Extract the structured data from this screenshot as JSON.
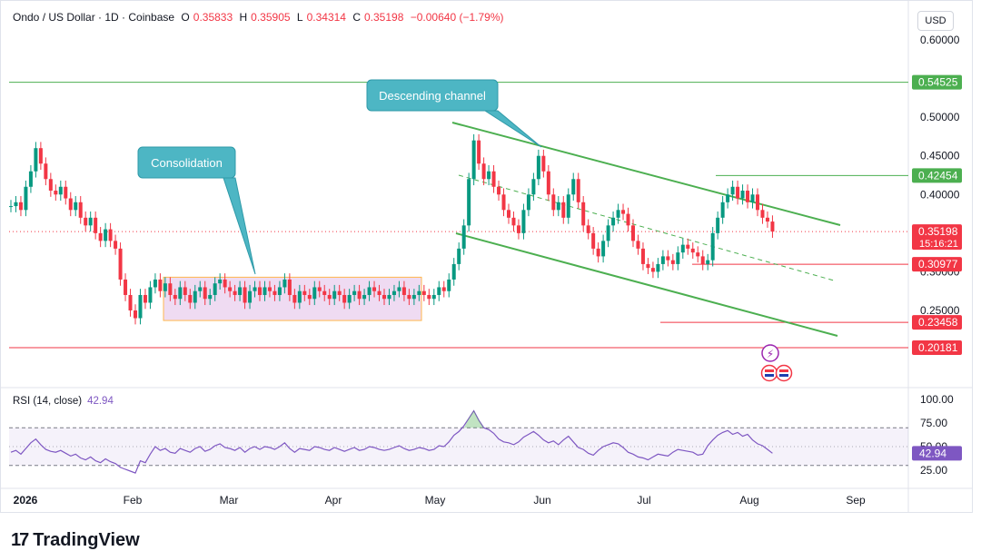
{
  "header": {
    "symbol": "Ondo / US Dollar · 1D · Coinbase",
    "open_label": "O",
    "open": "0.35833",
    "high_label": "H",
    "high": "0.35905",
    "low_label": "L",
    "low": "0.34314",
    "close_label": "C",
    "close": "0.35198",
    "change": "−0.00640 (−1.79%)"
  },
  "currency": "USD",
  "brand": {
    "name": "TradingView",
    "mark": "17"
  },
  "colors": {
    "up": "#089981",
    "down": "#f23645",
    "channel": "#4caf50",
    "rsi": "#7e57c2",
    "box": "#ce93d8",
    "callout": "#4db6c4"
  },
  "chart_data": {
    "type": "candlestick",
    "price_axis": {
      "ticks": [
        0.6,
        0.5,
        0.45,
        0.4,
        0.3,
        0.25
      ],
      "tick_labels": [
        "0.60000",
        "0.50000",
        "0.45000",
        "0.40000",
        "0.30000",
        "0.25000"
      ],
      "ylim": [
        0.195,
        0.62
      ]
    },
    "time_axis": {
      "labels": [
        "2026",
        "Feb",
        "Mar",
        "Apr",
        "May",
        "Jun",
        "Jul",
        "Aug",
        "Sep"
      ]
    },
    "price_labels": [
      {
        "value": 0.54525,
        "text": "0.54525",
        "color": "#4caf50"
      },
      {
        "value": 0.42454,
        "text": "0.42454",
        "color": "#4caf50"
      },
      {
        "value": 0.35198,
        "text": "0.35198",
        "sub": "15:16:21",
        "color": "#f23645"
      },
      {
        "value": 0.30977,
        "text": "0.30977",
        "color": "#f23645"
      },
      {
        "value": 0.23458,
        "text": "0.23458",
        "color": "#f23645"
      },
      {
        "value": 0.20181,
        "text": "0.20181",
        "color": "#f23645"
      }
    ],
    "annotations": [
      {
        "text": "Consolidation",
        "range_low": 0.237,
        "range_high": 0.293
      },
      {
        "text": "Descending channel"
      }
    ],
    "channel": {
      "upper": [
        [
          0.49,
          0.366
        ]
      ],
      "lower": [
        [
          0.355,
          0.222
        ]
      ],
      "mid": [
        [
          0.435,
          0.29
        ]
      ]
    },
    "close_series": [
      0.385,
      0.39,
      0.38,
      0.41,
      0.43,
      0.46,
      0.44,
      0.42,
      0.405,
      0.4,
      0.41,
      0.395,
      0.38,
      0.39,
      0.37,
      0.36,
      0.37,
      0.35,
      0.34,
      0.355,
      0.34,
      0.33,
      0.29,
      0.27,
      0.25,
      0.24,
      0.27,
      0.26,
      0.28,
      0.29,
      0.275,
      0.285,
      0.27,
      0.265,
      0.28,
      0.27,
      0.26,
      0.275,
      0.28,
      0.265,
      0.27,
      0.285,
      0.29,
      0.28,
      0.275,
      0.27,
      0.28,
      0.26,
      0.275,
      0.28,
      0.27,
      0.28,
      0.275,
      0.27,
      0.28,
      0.29,
      0.27,
      0.26,
      0.275,
      0.27,
      0.265,
      0.28,
      0.275,
      0.27,
      0.265,
      0.275,
      0.27,
      0.26,
      0.27,
      0.275,
      0.265,
      0.27,
      0.28,
      0.275,
      0.27,
      0.265,
      0.27,
      0.275,
      0.28,
      0.27,
      0.265,
      0.27,
      0.275,
      0.27,
      0.265,
      0.27,
      0.28,
      0.275,
      0.29,
      0.31,
      0.33,
      0.36,
      0.42,
      0.47,
      0.44,
      0.42,
      0.43,
      0.41,
      0.4,
      0.38,
      0.37,
      0.36,
      0.35,
      0.38,
      0.4,
      0.42,
      0.45,
      0.43,
      0.4,
      0.38,
      0.39,
      0.37,
      0.4,
      0.42,
      0.39,
      0.36,
      0.35,
      0.33,
      0.32,
      0.34,
      0.36,
      0.37,
      0.38,
      0.375,
      0.36,
      0.34,
      0.33,
      0.31,
      0.305,
      0.3,
      0.31,
      0.32,
      0.315,
      0.31,
      0.325,
      0.335,
      0.33,
      0.325,
      0.32,
      0.31,
      0.315,
      0.35,
      0.37,
      0.39,
      0.4,
      0.41,
      0.395,
      0.405,
      0.39,
      0.4,
      0.38,
      0.37,
      0.365,
      0.352
    ],
    "rsi": {
      "label": "RSI (14, close)",
      "value": "42.94",
      "ticks": [
        "100.00",
        "75.00",
        "50.00",
        "25.00"
      ],
      "series": [
        44,
        46,
        42,
        48,
        54,
        58,
        52,
        47,
        45,
        44,
        46,
        43,
        40,
        42,
        38,
        36,
        39,
        35,
        33,
        37,
        34,
        32,
        28,
        26,
        24,
        22,
        35,
        33,
        42,
        50,
        46,
        48,
        44,
        43,
        48,
        46,
        44,
        48,
        50,
        45,
        47,
        51,
        53,
        49,
        48,
        46,
        49,
        44,
        48,
        50,
        47,
        50,
        49,
        47,
        50,
        54,
        48,
        44,
        48,
        47,
        46,
        50,
        49,
        47,
        46,
        49,
        47,
        45,
        47,
        49,
        46,
        47,
        50,
        49,
        47,
        46,
        47,
        49,
        51,
        48,
        46,
        47,
        49,
        48,
        46,
        47,
        51,
        50,
        55,
        62,
        66,
        72,
        80,
        88,
        78,
        70,
        68,
        64,
        58,
        55,
        54,
        52,
        55,
        60,
        63,
        66,
        62,
        57,
        54,
        56,
        52,
        57,
        61,
        55,
        49,
        47,
        43,
        41,
        46,
        50,
        52,
        54,
        53,
        49,
        44,
        42,
        39,
        38,
        36,
        39,
        42,
        41,
        40,
        44,
        47,
        46,
        45,
        44,
        41,
        42,
        51,
        57,
        62,
        65,
        67,
        63,
        65,
        61,
        63,
        57,
        53,
        51,
        47,
        43
      ]
    }
  }
}
